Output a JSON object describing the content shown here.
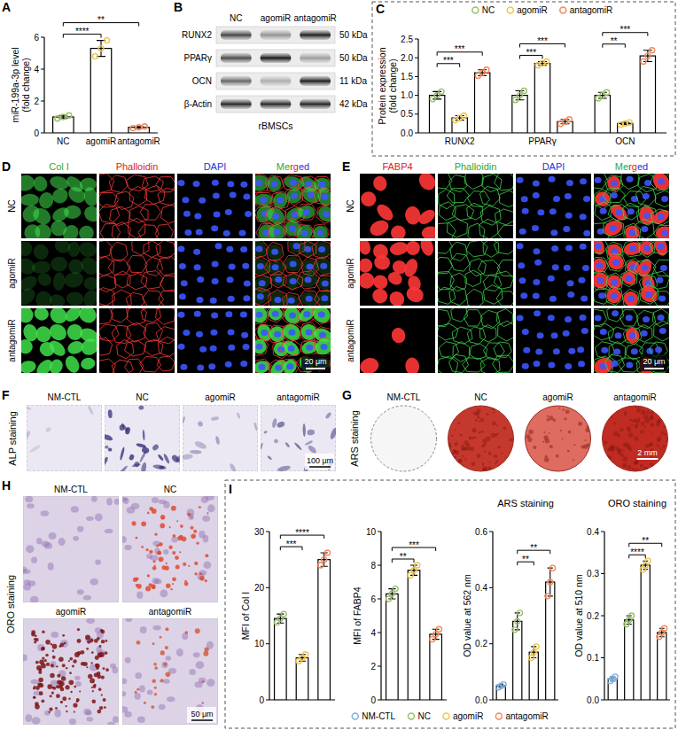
{
  "chart_data": [
    {
      "type": "bar",
      "y_label": "miR-199a-3p level (fold change)",
      "categories": [
        "NC",
        "agomiR",
        "antagomiR"
      ],
      "values": [
        1.0,
        5.3,
        0.35
      ],
      "errors": [
        0.1,
        0.5,
        0.05
      ],
      "points": [
        [
          0.9,
          1.0,
          1.1
        ],
        [
          4.8,
          5.3,
          5.8
        ],
        [
          0.3,
          0.35,
          0.4
        ]
      ],
      "colors": [
        "#9bbf6a",
        "#efc64a",
        "#f2895c"
      ],
      "ylim": [
        0,
        6
      ],
      "yticks": [
        0,
        2,
        4,
        6
      ],
      "annotations": [
        {
          "between": [
            "NC",
            "agomiR"
          ],
          "text": "****"
        },
        {
          "between": [
            "NC",
            "antagomiR"
          ],
          "text": "**"
        }
      ]
    },
    {
      "type": "bar",
      "y_label": "Protein expression (fold change)",
      "categories": [
        "RUNX2",
        "PPARγ",
        "OCN"
      ],
      "series": [
        {
          "name": "NC",
          "color": "#9bbf6a",
          "values": [
            1.0,
            1.0,
            1.0
          ],
          "errors": [
            0.1,
            0.12,
            0.08
          ],
          "points": [
            [
              0.9,
              1.0,
              1.1
            ],
            [
              0.88,
              1.0,
              1.12
            ],
            [
              0.92,
              1.0,
              1.08
            ]
          ]
        },
        {
          "name": "agomiR",
          "color": "#efc64a",
          "values": [
            0.4,
            1.85,
            0.25
          ],
          "errors": [
            0.06,
            0.05,
            0.03
          ],
          "points": [
            [
              0.34,
              0.4,
              0.46
            ],
            [
              1.8,
              1.85,
              1.9
            ],
            [
              0.22,
              0.25,
              0.28
            ]
          ]
        },
        {
          "name": "antagomiR",
          "color": "#f2895c",
          "values": [
            1.6,
            0.3,
            2.05
          ],
          "errors": [
            0.08,
            0.06,
            0.15
          ],
          "points": [
            [
              1.52,
              1.6,
              1.68
            ],
            [
              0.24,
              0.3,
              0.36
            ],
            [
              1.9,
              2.05,
              2.2
            ]
          ]
        }
      ],
      "ylim": [
        0,
        2.5
      ],
      "yticks": [
        {
          "value": 0,
          "label": "0.0"
        },
        0.5,
        {
          "value": 1,
          "label": "1.0"
        },
        1.5,
        {
          "value": 2,
          "label": "2.0"
        },
        2.5
      ],
      "legend": "top",
      "annotations": [
        {
          "category": "RUNX2",
          "between": [
            "NC",
            "agomiR"
          ],
          "text": "***"
        },
        {
          "category": "RUNX2",
          "between": [
            "NC",
            "antagomiR"
          ],
          "text": "***"
        },
        {
          "category": "PPARγ",
          "between": [
            "NC",
            "agomiR"
          ],
          "text": "***"
        },
        {
          "category": "PPARγ",
          "between": [
            "NC",
            "antagomiR"
          ],
          "text": "***"
        },
        {
          "category": "OCN",
          "between": [
            "NC",
            "agomiR"
          ],
          "text": "**"
        },
        {
          "category": "OCN",
          "between": [
            "NC",
            "antagomiR"
          ],
          "text": "***"
        }
      ]
    },
    {
      "type": "bar",
      "y_label": "MFI of Col I",
      "categories": [
        "NC",
        "agomiR",
        "antagomiR"
      ],
      "values": [
        14.5,
        7.5,
        25
      ],
      "errors": [
        0.8,
        0.6,
        1.2
      ],
      "points": [
        [
          13.8,
          14.5,
          15.3
        ],
        [
          6.9,
          7.5,
          8.1
        ],
        [
          24,
          25,
          26.2
        ]
      ],
      "colors": [
        "#9bbf6a",
        "#efc64a",
        "#f2895c"
      ],
      "ylim": [
        0,
        30
      ],
      "yticks": [
        0,
        10,
        20,
        30
      ],
      "tick_labels": "y",
      "annotations": [
        {
          "between": [
            "NC",
            "agomiR"
          ],
          "text": "***"
        },
        {
          "between": [
            "NC",
            "antagomiR"
          ],
          "text": "****"
        }
      ]
    },
    {
      "type": "bar",
      "y_label": "MFI of FABP4",
      "categories": [
        "NC",
        "agomiR",
        "antagomiR"
      ],
      "values": [
        6.3,
        7.7,
        3.9
      ],
      "errors": [
        0.3,
        0.3,
        0.3
      ],
      "points": [
        [
          6.0,
          6.3,
          6.6
        ],
        [
          7.4,
          7.7,
          8.0
        ],
        [
          3.6,
          3.9,
          4.2
        ]
      ],
      "colors": [
        "#9bbf6a",
        "#efc64a",
        "#f2895c"
      ],
      "ylim": [
        0,
        10
      ],
      "yticks": [
        0,
        2,
        4,
        6,
        8,
        10
      ],
      "tick_labels": "y",
      "annotations": [
        {
          "between": [
            "NC",
            "agomiR"
          ],
          "text": "**"
        },
        {
          "between": [
            "NC",
            "antagomiR"
          ],
          "text": "***"
        }
      ]
    },
    {
      "type": "bar",
      "title": "ARS staining",
      "y_label": "OD value at 562 nm",
      "categories": [
        "NM-CTL",
        "NC",
        "agomiR",
        "antagomiR"
      ],
      "values": [
        0.05,
        0.28,
        0.17,
        0.42
      ],
      "errors": [
        0.005,
        0.03,
        0.02,
        0.05
      ],
      "points": [
        [
          0.045,
          0.05,
          0.055
        ],
        [
          0.25,
          0.28,
          0.31
        ],
        [
          0.15,
          0.17,
          0.19
        ],
        [
          0.37,
          0.42,
          0.47
        ]
      ],
      "colors": [
        "#7fb0dc",
        "#9bbf6a",
        "#efc64a",
        "#f2895c"
      ],
      "ylim": [
        0,
        0.6
      ],
      "yticks": [
        {
          "value": 0,
          "label": "0.0"
        },
        0.2,
        0.4,
        0.6
      ],
      "tick_labels": "y",
      "legend": "bottom",
      "annotations": [
        {
          "between": [
            "NC",
            "agomiR"
          ],
          "text": "**"
        },
        {
          "between": [
            "NC",
            "antagomiR"
          ],
          "text": "**"
        }
      ]
    },
    {
      "type": "bar",
      "title": "ORO staining",
      "y_label": "OD value at 510 nm",
      "categories": [
        "NM-CTL",
        "NC",
        "agomiR",
        "antagomiR"
      ],
      "values": [
        0.05,
        0.19,
        0.32,
        0.16
      ],
      "errors": [
        0.005,
        0.01,
        0.01,
        0.01
      ],
      "points": [
        [
          0.045,
          0.05,
          0.055
        ],
        [
          0.18,
          0.19,
          0.2
        ],
        [
          0.31,
          0.32,
          0.33
        ],
        [
          0.15,
          0.16,
          0.17
        ]
      ],
      "colors": [
        "#7fb0dc",
        "#9bbf6a",
        "#efc64a",
        "#f2895c"
      ],
      "ylim": [
        0,
        0.4
      ],
      "yticks": [
        {
          "value": 0,
          "label": "0.0"
        },
        0.1,
        0.2,
        0.3,
        0.4
      ],
      "tick_labels": "y",
      "annotations": [
        {
          "between": [
            "NC",
            "agomiR"
          ],
          "text": "****"
        },
        {
          "between": [
            "NC",
            "antagomiR"
          ],
          "text": "**"
        }
      ]
    }
  ],
  "figure": {
    "panel_letters": [
      "A",
      "B",
      "C",
      "D",
      "E",
      "F",
      "G",
      "H",
      "I"
    ],
    "blot": {
      "lanes": [
        "NC",
        "agomiR",
        "antagomiR"
      ],
      "rows": [
        {
          "protein": "RUNX2",
          "size": "50 kDa"
        },
        {
          "protein": "PPARγ",
          "size": "50 kDa"
        },
        {
          "protein": "OCN",
          "size": "11 kDa"
        },
        {
          "protein": "β-Actin",
          "size": "42 kDa"
        }
      ],
      "cell_type": "rBMSCs"
    },
    "fluorescence": [
      {
        "channels": [
          "Col I",
          "Phalloidin",
          "DAPI",
          "Merged"
        ],
        "rows": [
          "NC",
          "agomiR",
          "antagomiR"
        ],
        "scale_bar": "20 μm"
      },
      {
        "channels": [
          "FABP4",
          "Phalloidin",
          "DAPI",
          "Merged"
        ],
        "rows": [
          "NC",
          "agomiR",
          "antagomiR"
        ],
        "scale_bar": "20 μm"
      }
    ],
    "alp": {
      "title": "ALP staining",
      "groups": [
        "NM-CTL",
        "NC",
        "agomiR",
        "antagomiR"
      ],
      "scale_bar": "100 μm"
    },
    "ars": {
      "title": "ARS staining",
      "groups": [
        "NM-CTL",
        "NC",
        "agomiR",
        "antagomiR"
      ],
      "scale_bar": "2 mm"
    },
    "oro": {
      "title": "ORO staining",
      "groups": [
        "NM-CTL",
        "NC",
        "agomiR",
        "antagomiR"
      ],
      "scale_bar": "50 μm"
    }
  }
}
